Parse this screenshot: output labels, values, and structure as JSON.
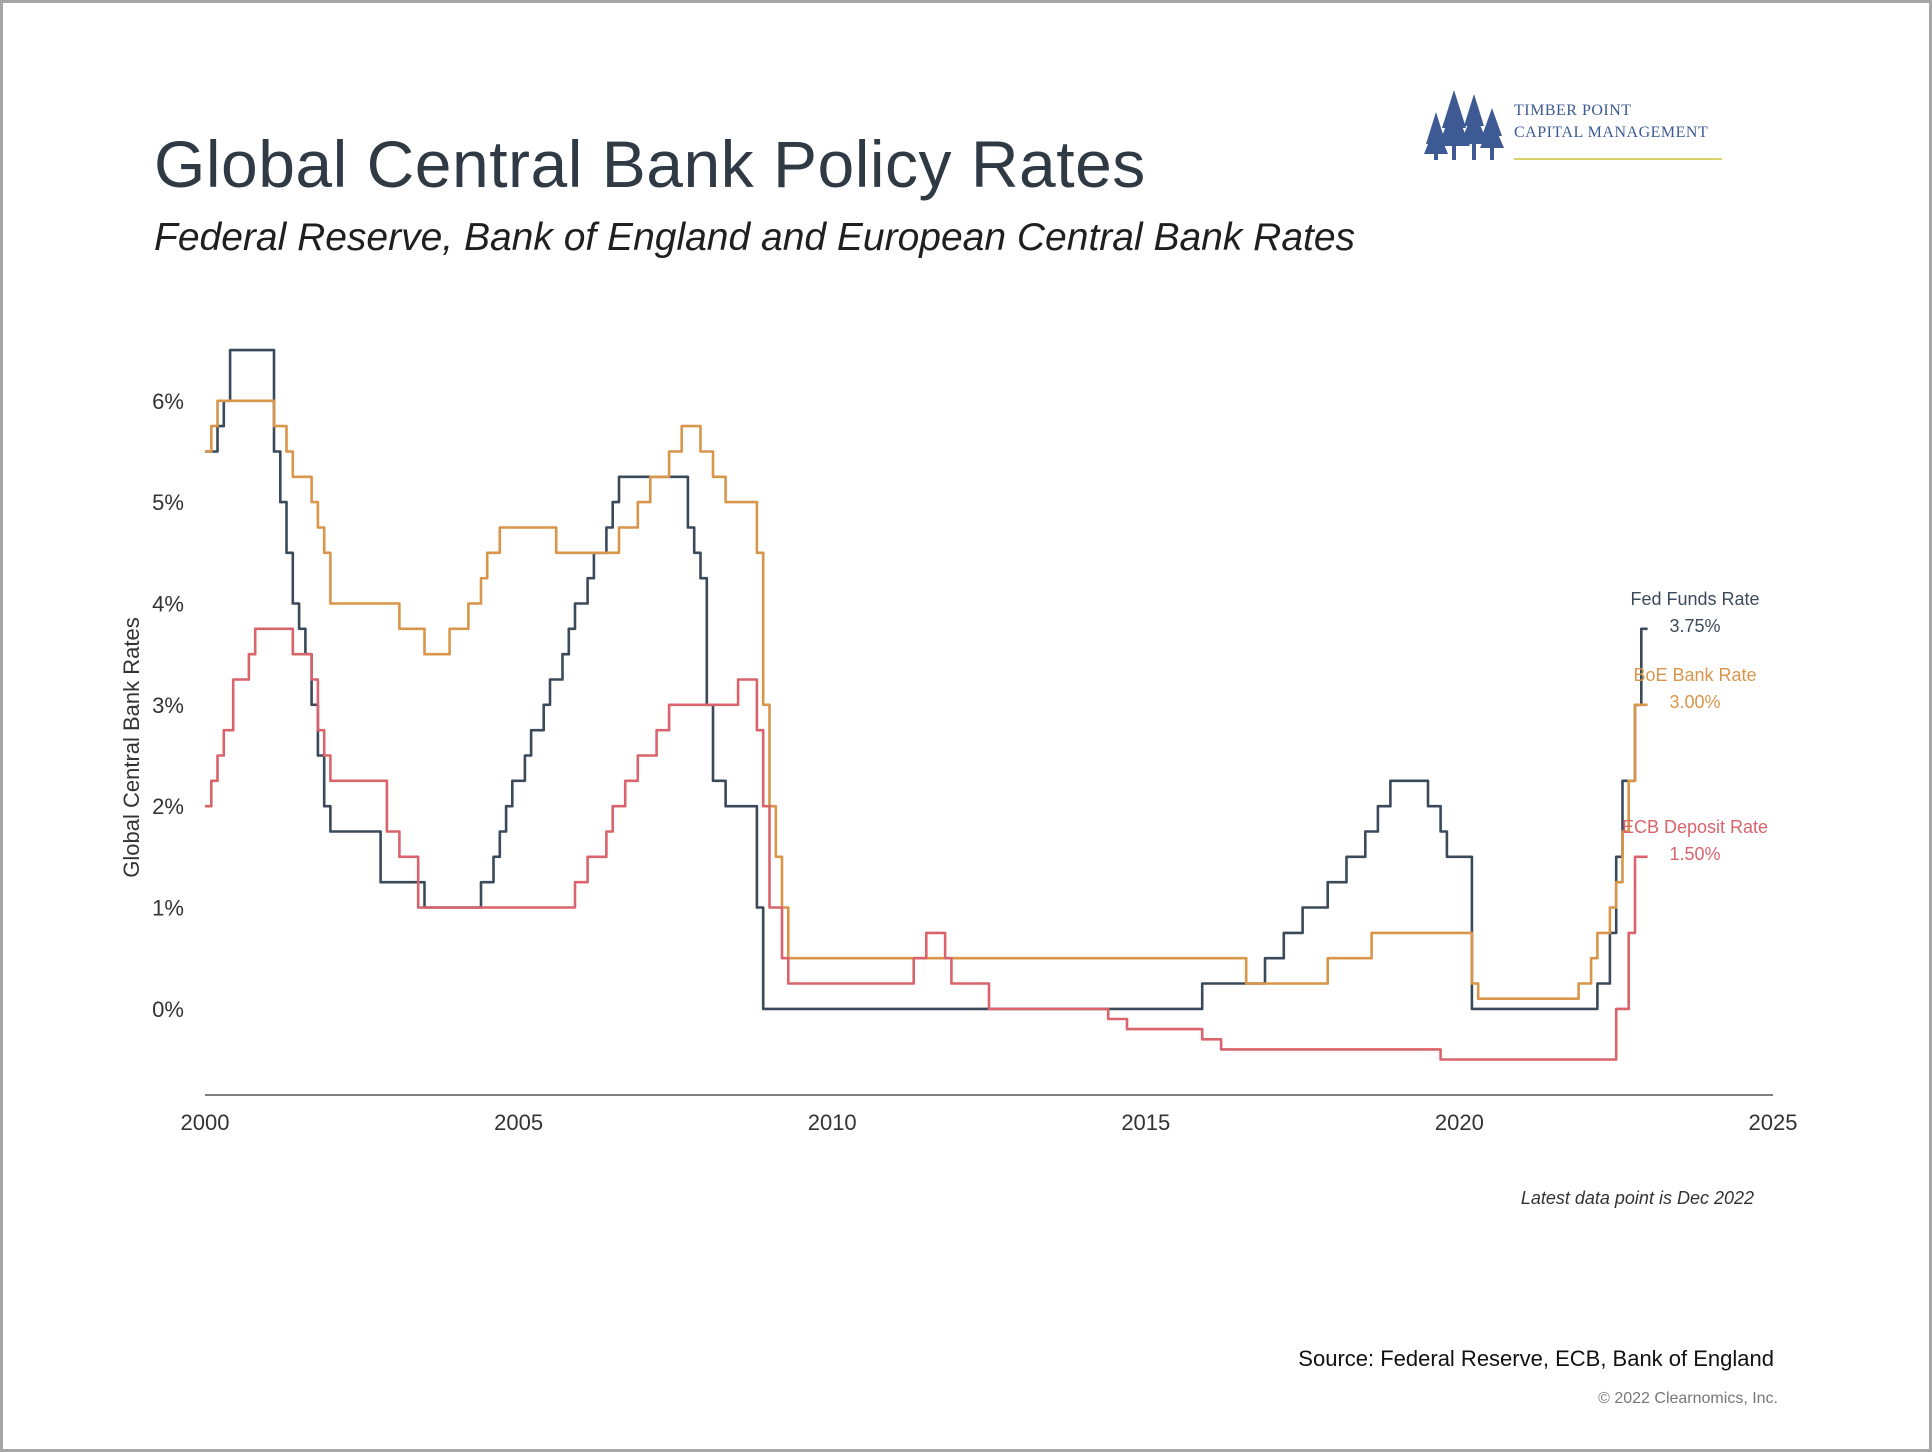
{
  "page": {
    "title": "Global Central Bank Policy Rates",
    "subtitle": "Federal Reserve, Bank of England and European Central Bank Rates",
    "logo_line1": "Timber Point",
    "logo_line2": "Capital Management",
    "note": "Latest data point is Dec 2022",
    "source": "Source: Federal Reserve, ECB, Bank of England",
    "copyright": "© 2022 Clearnomics, Inc."
  },
  "colors": {
    "fed": "#3b4a5a",
    "boe": "#d9964a",
    "ecb": "#d9646b",
    "axis": "#333333",
    "logo": "#3d5a94"
  },
  "chart_data": {
    "type": "line",
    "title": "Global Central Bank Policy Rates",
    "subtitle": "Federal Reserve, Bank of England and European Central Bank Rates",
    "ylabel": "Global Central Bank Rates",
    "xlabel": "",
    "xlim": [
      2000,
      2025
    ],
    "ylim": [
      -0.85,
      6.6
    ],
    "xticks": [
      2000,
      2005,
      2010,
      2015,
      2020,
      2025
    ],
    "xtick_labels": [
      "2000",
      "2005",
      "2010",
      "2015",
      "2020",
      "2025"
    ],
    "yticks": [
      0,
      1,
      2,
      3,
      4,
      5,
      6
    ],
    "ytick_labels": [
      "0%",
      "1%",
      "2%",
      "3%",
      "4%",
      "5%",
      "6%"
    ],
    "grid": false,
    "step": true,
    "series": [
      {
        "name": "Fed Funds Rate",
        "end_label": "3.75%",
        "color_key": "fed",
        "points": [
          [
            2000.0,
            5.5
          ],
          [
            2000.1,
            5.5
          ],
          [
            2000.2,
            5.75
          ],
          [
            2000.3,
            6.0
          ],
          [
            2000.4,
            6.5
          ],
          [
            2001.0,
            6.5
          ],
          [
            2001.1,
            5.5
          ],
          [
            2001.2,
            5.0
          ],
          [
            2001.3,
            4.5
          ],
          [
            2001.4,
            4.0
          ],
          [
            2001.5,
            3.75
          ],
          [
            2001.6,
            3.5
          ],
          [
            2001.7,
            3.0
          ],
          [
            2001.8,
            2.5
          ],
          [
            2001.9,
            2.0
          ],
          [
            2002.0,
            1.75
          ],
          [
            2002.8,
            1.25
          ],
          [
            2003.5,
            1.0
          ],
          [
            2004.4,
            1.25
          ],
          [
            2004.6,
            1.5
          ],
          [
            2004.7,
            1.75
          ],
          [
            2004.8,
            2.0
          ],
          [
            2004.9,
            2.25
          ],
          [
            2005.1,
            2.5
          ],
          [
            2005.2,
            2.75
          ],
          [
            2005.4,
            3.0
          ],
          [
            2005.5,
            3.25
          ],
          [
            2005.7,
            3.5
          ],
          [
            2005.8,
            3.75
          ],
          [
            2005.9,
            4.0
          ],
          [
            2006.1,
            4.25
          ],
          [
            2006.2,
            4.5
          ],
          [
            2006.4,
            4.75
          ],
          [
            2006.5,
            5.0
          ],
          [
            2006.6,
            5.25
          ],
          [
            2007.7,
            4.75
          ],
          [
            2007.8,
            4.5
          ],
          [
            2007.9,
            4.25
          ],
          [
            2008.0,
            3.0
          ],
          [
            2008.1,
            2.25
          ],
          [
            2008.3,
            2.0
          ],
          [
            2008.8,
            1.0
          ],
          [
            2008.9,
            0.0
          ],
          [
            2015.9,
            0.25
          ],
          [
            2016.9,
            0.5
          ],
          [
            2017.2,
            0.75
          ],
          [
            2017.5,
            1.0
          ],
          [
            2017.9,
            1.25
          ],
          [
            2018.2,
            1.5
          ],
          [
            2018.5,
            1.75
          ],
          [
            2018.7,
            2.0
          ],
          [
            2018.9,
            2.25
          ],
          [
            2019.5,
            2.0
          ],
          [
            2019.7,
            1.75
          ],
          [
            2019.8,
            1.5
          ],
          [
            2020.2,
            0.0
          ],
          [
            2022.2,
            0.25
          ],
          [
            2022.4,
            0.75
          ],
          [
            2022.5,
            1.5
          ],
          [
            2022.6,
            2.25
          ],
          [
            2022.8,
            3.0
          ],
          [
            2022.9,
            3.75
          ],
          [
            2023.0,
            3.75
          ]
        ]
      },
      {
        "name": "BoE Bank Rate",
        "end_label": "3.00%",
        "color_key": "boe",
        "points": [
          [
            2000.0,
            5.5
          ],
          [
            2000.1,
            5.75
          ],
          [
            2000.2,
            6.0
          ],
          [
            2001.1,
            5.75
          ],
          [
            2001.3,
            5.5
          ],
          [
            2001.4,
            5.25
          ],
          [
            2001.7,
            5.0
          ],
          [
            2001.8,
            4.75
          ],
          [
            2001.9,
            4.5
          ],
          [
            2002.0,
            4.0
          ],
          [
            2003.1,
            3.75
          ],
          [
            2003.5,
            3.5
          ],
          [
            2003.9,
            3.75
          ],
          [
            2004.2,
            4.0
          ],
          [
            2004.4,
            4.25
          ],
          [
            2004.5,
            4.5
          ],
          [
            2004.7,
            4.75
          ],
          [
            2005.6,
            4.5
          ],
          [
            2006.6,
            4.75
          ],
          [
            2006.9,
            5.0
          ],
          [
            2007.1,
            5.25
          ],
          [
            2007.4,
            5.5
          ],
          [
            2007.6,
            5.75
          ],
          [
            2007.9,
            5.5
          ],
          [
            2008.1,
            5.25
          ],
          [
            2008.3,
            5.0
          ],
          [
            2008.8,
            4.5
          ],
          [
            2008.9,
            3.0
          ],
          [
            2009.0,
            2.0
          ],
          [
            2009.1,
            1.5
          ],
          [
            2009.2,
            1.0
          ],
          [
            2009.3,
            0.5
          ],
          [
            2016.6,
            0.25
          ],
          [
            2017.9,
            0.5
          ],
          [
            2018.6,
            0.75
          ],
          [
            2020.2,
            0.25
          ],
          [
            2020.3,
            0.1
          ],
          [
            2021.9,
            0.25
          ],
          [
            2022.1,
            0.5
          ],
          [
            2022.2,
            0.75
          ],
          [
            2022.4,
            1.0
          ],
          [
            2022.5,
            1.25
          ],
          [
            2022.6,
            1.75
          ],
          [
            2022.7,
            2.25
          ],
          [
            2022.8,
            3.0
          ],
          [
            2023.0,
            3.0
          ]
        ]
      },
      {
        "name": "ECB Deposit Rate",
        "end_label": "1.50%",
        "color_key": "ecb",
        "points": [
          [
            2000.0,
            2.0
          ],
          [
            2000.1,
            2.25
          ],
          [
            2000.2,
            2.5
          ],
          [
            2000.3,
            2.75
          ],
          [
            2000.45,
            3.25
          ],
          [
            2000.7,
            3.5
          ],
          [
            2000.8,
            3.75
          ],
          [
            2001.4,
            3.5
          ],
          [
            2001.7,
            3.25
          ],
          [
            2001.8,
            2.75
          ],
          [
            2001.9,
            2.5
          ],
          [
            2002.0,
            2.25
          ],
          [
            2002.9,
            1.75
          ],
          [
            2003.1,
            1.5
          ],
          [
            2003.4,
            1.0
          ],
          [
            2005.9,
            1.25
          ],
          [
            2006.1,
            1.5
          ],
          [
            2006.4,
            1.75
          ],
          [
            2006.5,
            2.0
          ],
          [
            2006.7,
            2.25
          ],
          [
            2006.9,
            2.5
          ],
          [
            2007.2,
            2.75
          ],
          [
            2007.4,
            3.0
          ],
          [
            2008.5,
            3.25
          ],
          [
            2008.8,
            2.75
          ],
          [
            2008.9,
            2.0
          ],
          [
            2009.0,
            1.0
          ],
          [
            2009.2,
            0.5
          ],
          [
            2009.3,
            0.25
          ],
          [
            2011.3,
            0.5
          ],
          [
            2011.5,
            0.75
          ],
          [
            2011.8,
            0.5
          ],
          [
            2011.9,
            0.25
          ],
          [
            2012.5,
            0.0
          ],
          [
            2014.4,
            -0.1
          ],
          [
            2014.7,
            -0.2
          ],
          [
            2015.9,
            -0.3
          ],
          [
            2016.2,
            -0.4
          ],
          [
            2019.7,
            -0.5
          ],
          [
            2022.5,
            0.0
          ],
          [
            2022.7,
            0.75
          ],
          [
            2022.8,
            1.5
          ],
          [
            2023.0,
            1.5
          ]
        ]
      }
    ]
  }
}
